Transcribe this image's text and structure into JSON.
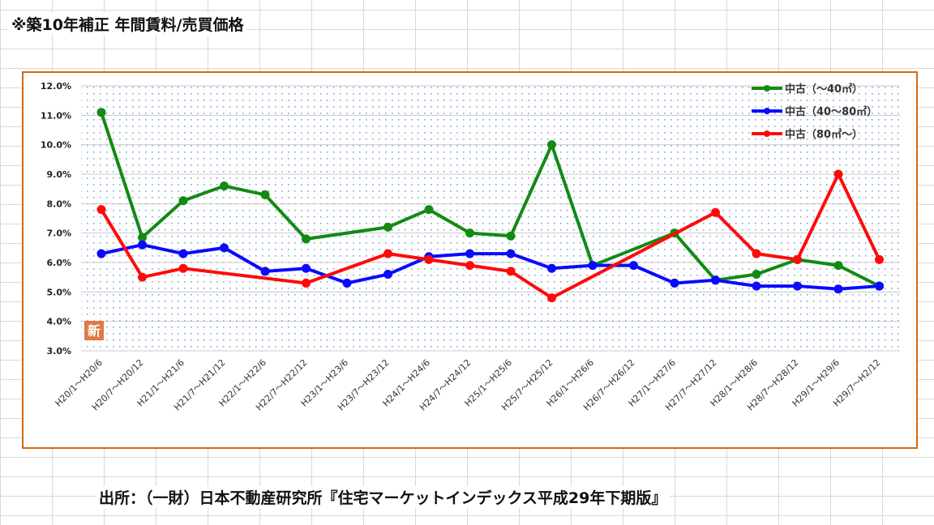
{
  "title": "※築10年補正 年間賃料/売買価格",
  "source": "出所：（一財）日本不動産研究所『住宅マーケットインデックス平成29年下期版』",
  "stamp": "新",
  "chart_data": {
    "type": "line",
    "title": "※築10年補正 年間賃料/売買価格",
    "ylim": [
      3,
      12
    ],
    "yticks": [
      "3.0%",
      "4.0%",
      "5.0%",
      "6.0%",
      "7.0%",
      "8.0%",
      "9.0%",
      "10.0%",
      "11.0%",
      "12.0%"
    ],
    "legend_position": "top-right",
    "categories": [
      "H20/1～H20/6",
      "H20/7～H20/12",
      "H21/1～H21/6",
      "H21/7～H21/12",
      "H22/1～H22/6",
      "H22/7～H22/12",
      "H23/1～H23/6",
      "H23/7～H23/12",
      "H24/1～H24/6",
      "H24/7～H24/12",
      "H25/1～H25/6",
      "H25/7～H25/12",
      "H26/1～H26/6",
      "H26/7～H26/12",
      "H27/1～H27/6",
      "H27/7～H27/12",
      "H28/1～H28/6",
      "H28/7～H28/12",
      "H29/1～H29/6",
      "H29/7～H2/12"
    ],
    "series": [
      {
        "name": "中古（～40㎡）",
        "color": "#138a13",
        "values": [
          11.1,
          6.85,
          8.1,
          8.6,
          8.3,
          6.8,
          null,
          7.2,
          7.8,
          7.0,
          6.9,
          10.0,
          5.9,
          null,
          7.0,
          5.4,
          5.6,
          6.1,
          5.9,
          5.2
        ]
      },
      {
        "name": "中古（40～80㎡）",
        "color": "#0a0aff",
        "values": [
          6.3,
          6.6,
          6.3,
          6.5,
          5.7,
          5.8,
          5.3,
          5.6,
          6.2,
          6.3,
          6.3,
          5.8,
          5.9,
          5.9,
          5.3,
          5.4,
          5.2,
          5.2,
          5.1,
          5.2
        ]
      },
      {
        "name": "中古（80㎡～）",
        "color": "#ff0a0a",
        "values": [
          7.8,
          5.5,
          5.8,
          null,
          null,
          5.3,
          null,
          6.3,
          6.1,
          5.9,
          5.7,
          4.8,
          null,
          null,
          null,
          7.7,
          6.3,
          6.1,
          9.0,
          6.1
        ]
      }
    ]
  }
}
